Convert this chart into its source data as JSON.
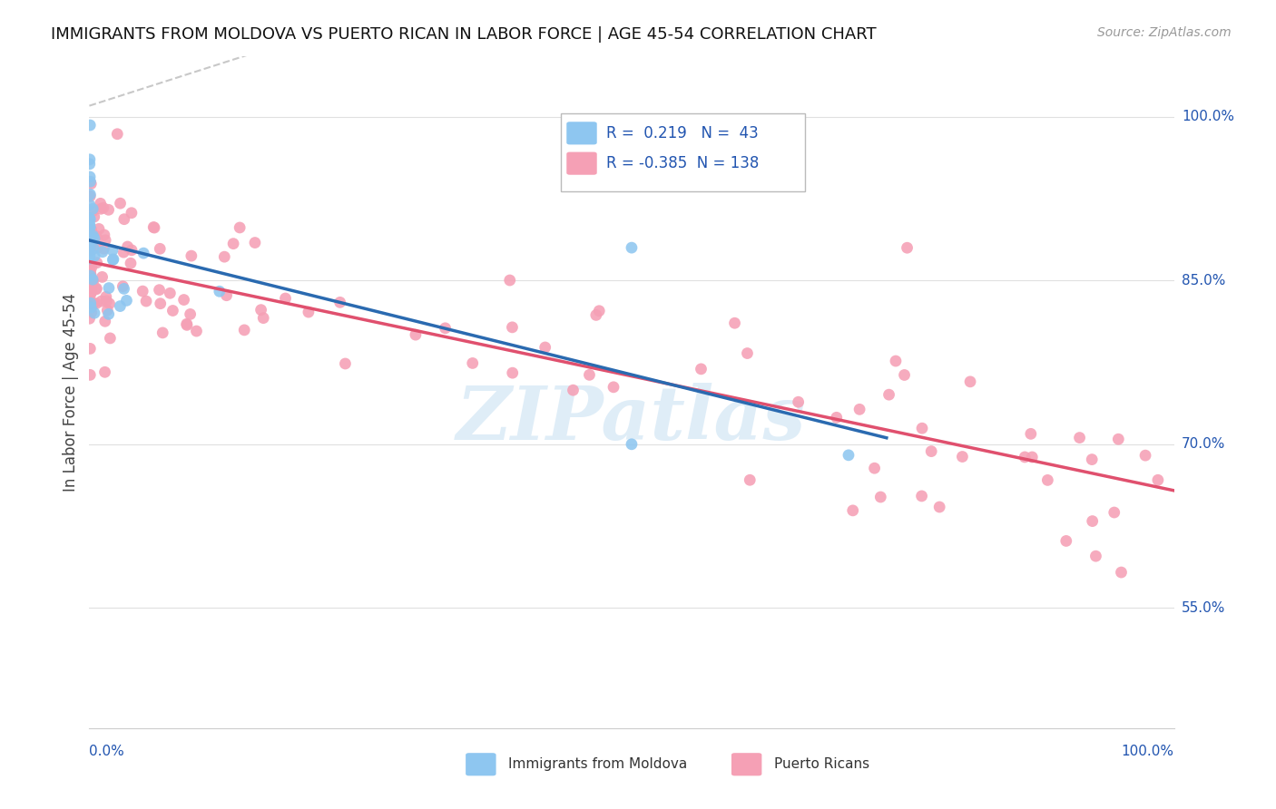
{
  "title": "IMMIGRANTS FROM MOLDOVA VS PUERTO RICAN IN LABOR FORCE | AGE 45-54 CORRELATION CHART",
  "source": "Source: ZipAtlas.com",
  "ylabel": "In Labor Force | Age 45-54",
  "ytick_labels": [
    "55.0%",
    "70.0%",
    "85.0%",
    "100.0%"
  ],
  "ytick_values": [
    0.55,
    0.7,
    0.85,
    1.0
  ],
  "xlim": [
    0.0,
    1.0
  ],
  "ylim": [
    0.44,
    1.055
  ],
  "R_moldova": 0.219,
  "N_moldova": 43,
  "R_puerto": -0.385,
  "N_puerto": 138,
  "moldova_color": "#8ec6f0",
  "puerto_color": "#f5a0b5",
  "moldova_line_color": "#2a6ab0",
  "puerto_line_color": "#e0506e",
  "ref_line_color": "#c8c8c8",
  "legend_text_color": "#2255b0",
  "watermark": "ZIPatlas",
  "watermark_color": "#c5dff2",
  "background": "#ffffff",
  "title_fontsize": 13,
  "source_fontsize": 10,
  "legend_fontsize": 12,
  "axis_label_fontsize": 12,
  "tick_label_fontsize": 11
}
